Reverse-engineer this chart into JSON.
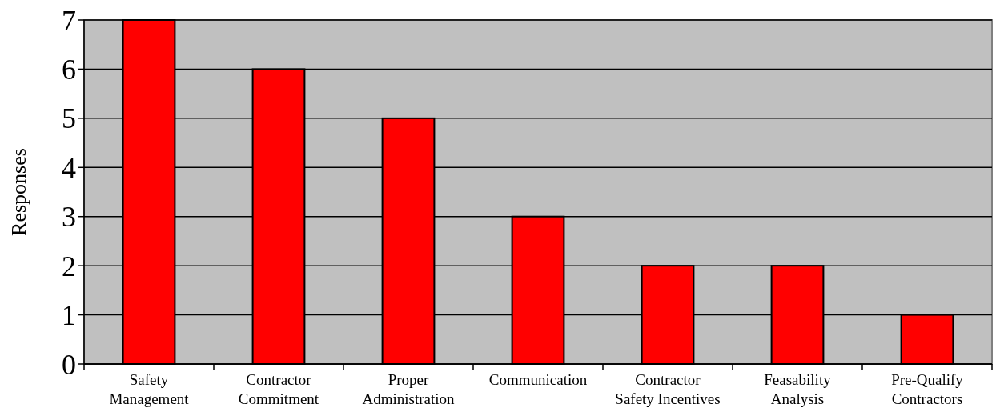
{
  "chart_data": {
    "type": "bar",
    "ylabel": "Responses",
    "categories": [
      "Safety Management",
      "Contractor Commitment",
      "Proper Administration",
      "Communication",
      "Contractor Safety Incentives",
      "Feasability Analysis",
      "Pre-Qualify Contractors"
    ],
    "values": [
      7,
      6,
      5,
      3,
      2,
      2,
      1
    ],
    "color": "#ff0000",
    "ylim": [
      0,
      7
    ],
    "yticks": [
      0,
      1,
      2,
      3,
      4,
      5,
      6,
      7
    ],
    "grid": "y"
  }
}
